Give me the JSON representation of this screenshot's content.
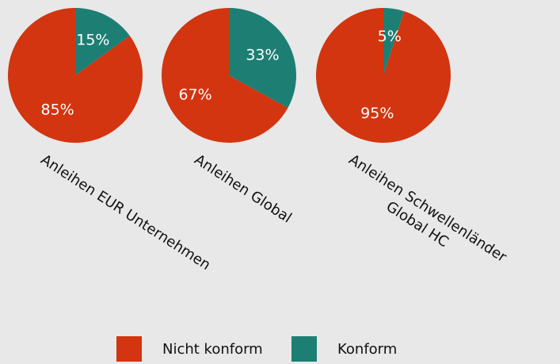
{
  "chart_data": [
    {
      "type": "pie",
      "title": [
        "Anleihen EUR Unternehmen"
      ],
      "categories": [
        "Nicht konform",
        "Konform"
      ],
      "values": [
        85,
        15
      ],
      "value_labels": [
        "85%",
        "15%"
      ],
      "colors": [
        "#d2350f",
        "#1d7e74"
      ]
    },
    {
      "type": "pie",
      "title": [
        "Anleihen Global"
      ],
      "categories": [
        "Nicht konform",
        "Konform"
      ],
      "values": [
        67,
        33
      ],
      "value_labels": [
        "67%",
        "33%"
      ],
      "colors": [
        "#d2350f",
        "#1d7e74"
      ]
    },
    {
      "type": "pie",
      "title": [
        "Anleihen Schwellenländer",
        "Global HC"
      ],
      "categories": [
        "Nicht konform",
        "Konform"
      ],
      "values": [
        95,
        5
      ],
      "value_labels": [
        "95%",
        "5%"
      ],
      "colors": [
        "#d2350f",
        "#1d7e74"
      ]
    }
  ]
}
